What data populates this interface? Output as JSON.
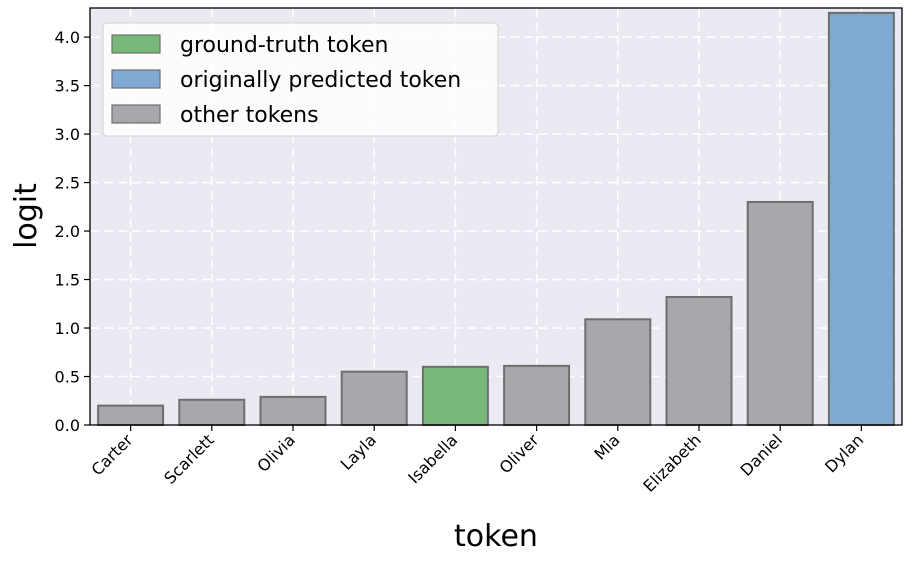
{
  "chart_data": {
    "type": "bar",
    "xlabel": "token",
    "ylabel": "logit",
    "categories": [
      "Carter",
      "Scarlett",
      "Olivia",
      "Layla",
      "Isabella",
      "Oliver",
      "Mia",
      "Elizabeth",
      "Daniel",
      "Dylan"
    ],
    "values": [
      0.2,
      0.26,
      0.29,
      0.55,
      0.6,
      0.61,
      1.09,
      1.32,
      2.3,
      4.25
    ],
    "bar_roles": [
      "other",
      "other",
      "other",
      "other",
      "ground_truth",
      "other",
      "other",
      "other",
      "other",
      "predicted"
    ],
    "ylim": [
      0,
      4.3
    ],
    "yticks": [
      "0.0",
      "0.5",
      "1.0",
      "1.5",
      "2.0",
      "2.5",
      "3.0",
      "3.5",
      "4.0"
    ],
    "grid": true,
    "legend_position": "top-left",
    "legend": [
      {
        "role": "ground_truth",
        "label": "ground-truth token"
      },
      {
        "role": "predicted",
        "label": "originally predicted token"
      },
      {
        "role": "other",
        "label": "other tokens"
      }
    ],
    "colors": {
      "ground_truth": "#77b77a",
      "predicted": "#7fa8d2",
      "other": "#a8a7ad",
      "bar_edge": "#6e6e6e",
      "plot_background": "#eaeaf2",
      "grid": "#ffffff"
    }
  }
}
